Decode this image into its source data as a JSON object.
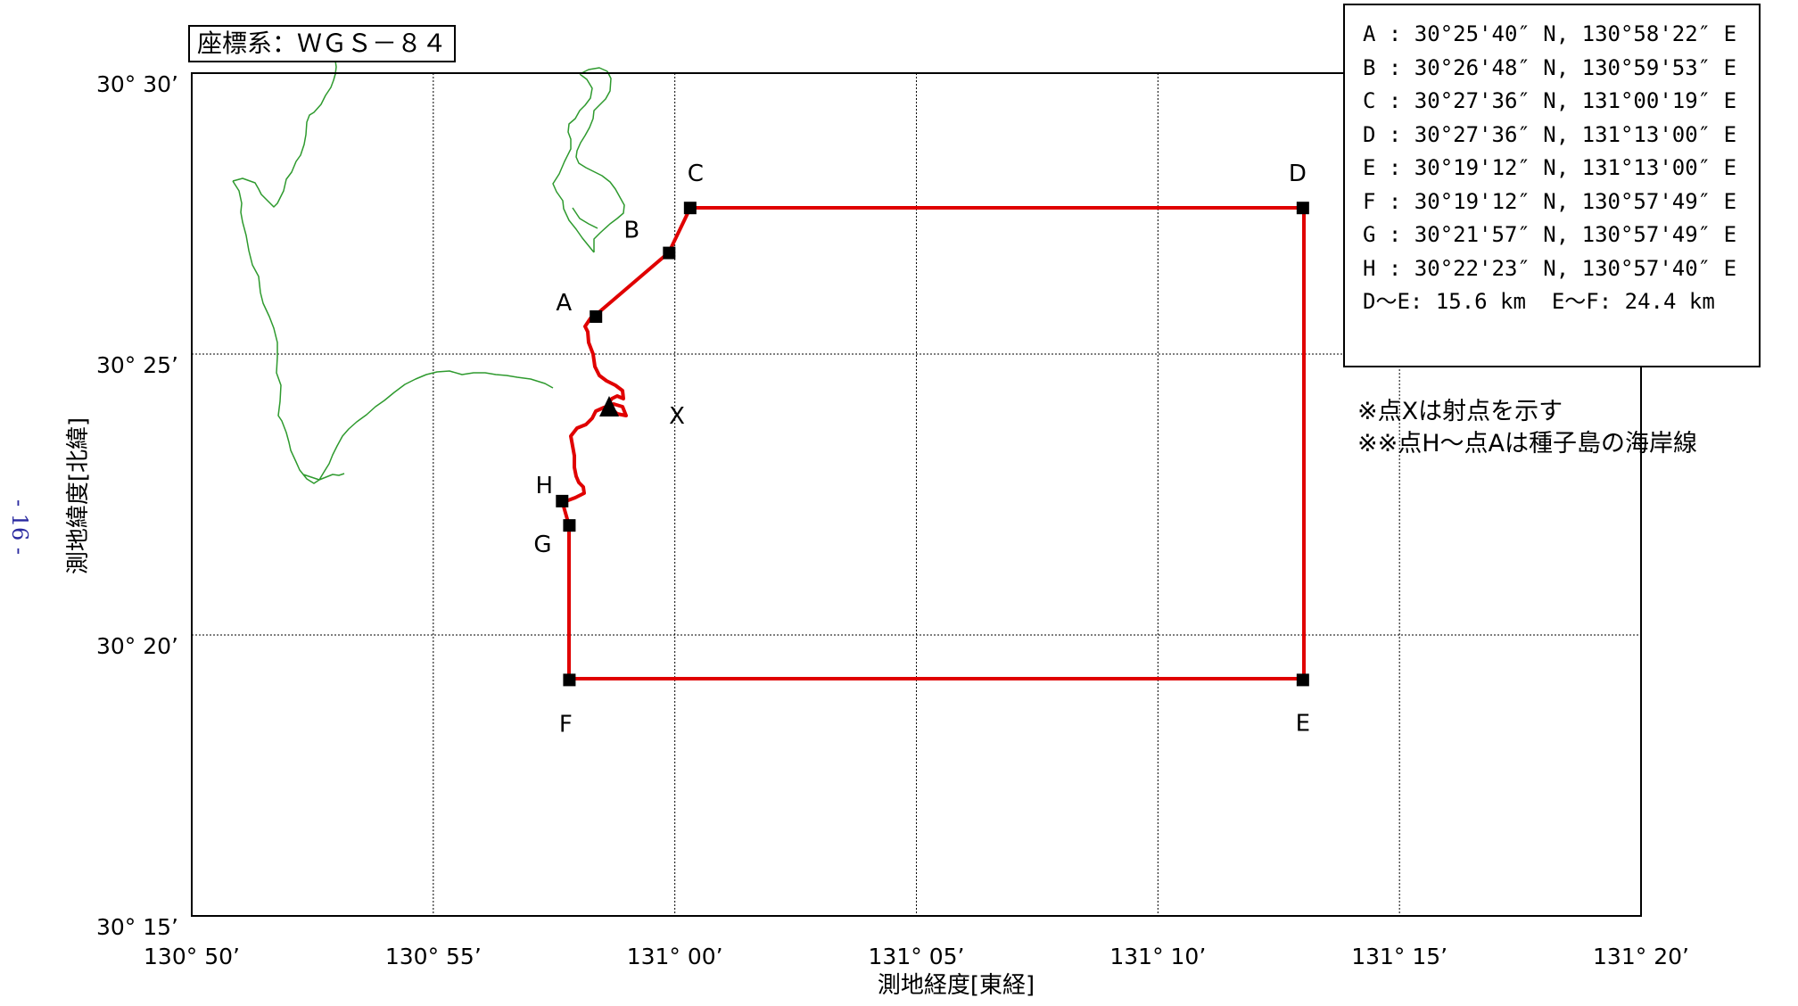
{
  "coordinate_system": "座標系：ＷＧＳ－８４",
  "axes": {
    "y_label": "測地緯度[北緯]",
    "x_label": "測地経度[東経]",
    "y_ticks": [
      "30° 30’",
      "30° 25’",
      "30° 20’",
      "30° 15’"
    ],
    "x_ticks": [
      "130° 50’",
      "130° 55’",
      "131° 00’",
      "131° 05’",
      "131° 10’",
      "131° 15’",
      "131° 20’"
    ],
    "lat_range_minutes": [
      15,
      30
    ],
    "lon_range_minutes": [
      50,
      80
    ],
    "grid_step_minutes": 5,
    "grid": true
  },
  "points": [
    {
      "id": "A",
      "label": "A",
      "lat": "30°25'40\" N",
      "lon": "130°58'22\" E",
      "lat_min": 25.667,
      "lon_min": 58.367
    },
    {
      "id": "B",
      "label": "B",
      "lat": "30°26'48\" N",
      "lon": "130°59'53\" E",
      "lat_min": 26.8,
      "lon_min": 59.883
    },
    {
      "id": "C",
      "label": "C",
      "lat": "30°27'36\" N",
      "lon": "131°00'19\" E",
      "lat_min": 27.6,
      "lon_min": 60.317
    },
    {
      "id": "D",
      "label": "D",
      "lat": "30°27'36\" N",
      "lon": "131°13'00\" E",
      "lat_min": 27.6,
      "lon_min": 73.0
    },
    {
      "id": "E",
      "label": "E",
      "lat": "30°19'12\" N",
      "lon": "131°13'00\" E",
      "lat_min": 19.2,
      "lon_min": 73.0
    },
    {
      "id": "F",
      "label": "F",
      "lat": "30°19'12\" N",
      "lon": "130°57'49\" E",
      "lat_min": 19.2,
      "lon_min": 57.817
    },
    {
      "id": "G",
      "label": "G",
      "lat": "30°21'57\" N",
      "lon": "130°57'49\" E",
      "lat_min": 21.95,
      "lon_min": 57.817
    },
    {
      "id": "H",
      "label": "H",
      "lat": "30°22'23\" N",
      "lon": "130°57'40\" E",
      "lat_min": 22.383,
      "lon_min": 57.667
    }
  ],
  "launch_point": {
    "label": "X",
    "lat_min": 24.0,
    "lon_min": 58.9
  },
  "legend": {
    "rows": [
      "A : 30°25'40″ N, 130°58'22″ E",
      "B : 30°26'48″ N, 130°59'53″ E",
      "C : 30°27'36″ N, 131°00'19″ E",
      "D : 30°27'36″ N, 131°13'00″ E",
      "E : 30°19'12″ N, 131°13'00″ E",
      "F : 30°19'12″ N, 130°57'49″ E",
      "G : 30°21'57″ N, 130°57'49″ E",
      "H : 30°22'23″ N, 130°57'40″ E",
      "D〜E: 15.6 km  E〜F: 24.4 km"
    ]
  },
  "notes": {
    "line1": "※点Xは射点を示す",
    "line2": "※※点H〜点Aは種子島の海岸線"
  },
  "page_number": "- 16 -",
  "colors": {
    "boundary": "#e00000",
    "coastline": "#2e9a2e",
    "grid": "#000000",
    "vertex": "#000000"
  }
}
